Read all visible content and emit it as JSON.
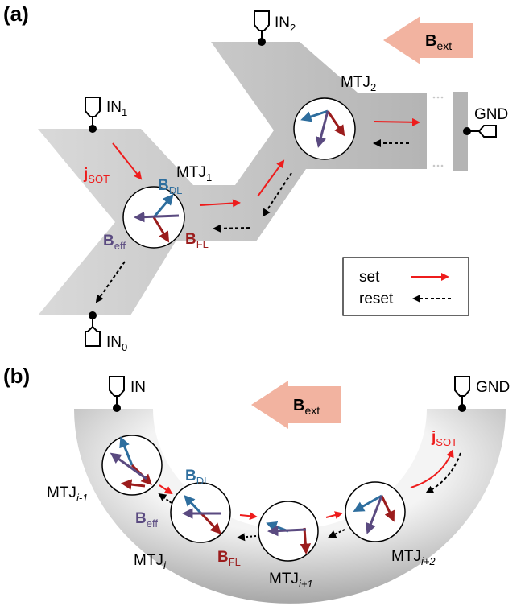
{
  "colors": {
    "track_light": "#dcdcdc",
    "track_dark": "#a9a9a9",
    "set_arrow": "#ee1c1c",
    "reset_arrow": "#000000",
    "b_dl": "#2e6e9e",
    "b_fl": "#9b1c1c",
    "b_eff": "#5a4a80",
    "b_ext_fill": "#f2b3a0"
  },
  "panel_a": {
    "label": "(a)",
    "in1": "IN",
    "in1_sub": "1",
    "in2": "IN",
    "in2_sub": "2",
    "in0": "IN",
    "in0_sub": "0",
    "gnd": "GND",
    "mtj1": "MTJ",
    "mtj1_sub": "1",
    "mtj2": "MTJ",
    "mtj2_sub": "2",
    "j_sot": "j",
    "j_sot_sub": "SOT",
    "b_dl": "B",
    "b_dl_sub": "DL",
    "b_fl": "B",
    "b_fl_sub": "FL",
    "b_eff": "B",
    "b_eff_sub": "eff",
    "b_ext": "B",
    "b_ext_sub": "ext",
    "legend": {
      "set": "set",
      "reset": "reset"
    }
  },
  "panel_b": {
    "label": "(b)",
    "in": "IN",
    "gnd": "GND",
    "b_ext": "B",
    "b_ext_sub": "ext",
    "j_sot": "j",
    "j_sot_sub": "SOT",
    "b_dl": "B",
    "b_dl_sub": "DL",
    "b_fl": "B",
    "b_fl_sub": "FL",
    "b_eff": "B",
    "b_eff_sub": "eff",
    "mtj_im1": "MTJ",
    "mtj_im1_sub": "i-1",
    "mtj_i": "MTJ",
    "mtj_i_sub": "i",
    "mtj_ip1": "MTJ",
    "mtj_ip1_sub": "i+1",
    "mtj_ip2": "MTJ",
    "mtj_ip2_sub": "i+2"
  }
}
